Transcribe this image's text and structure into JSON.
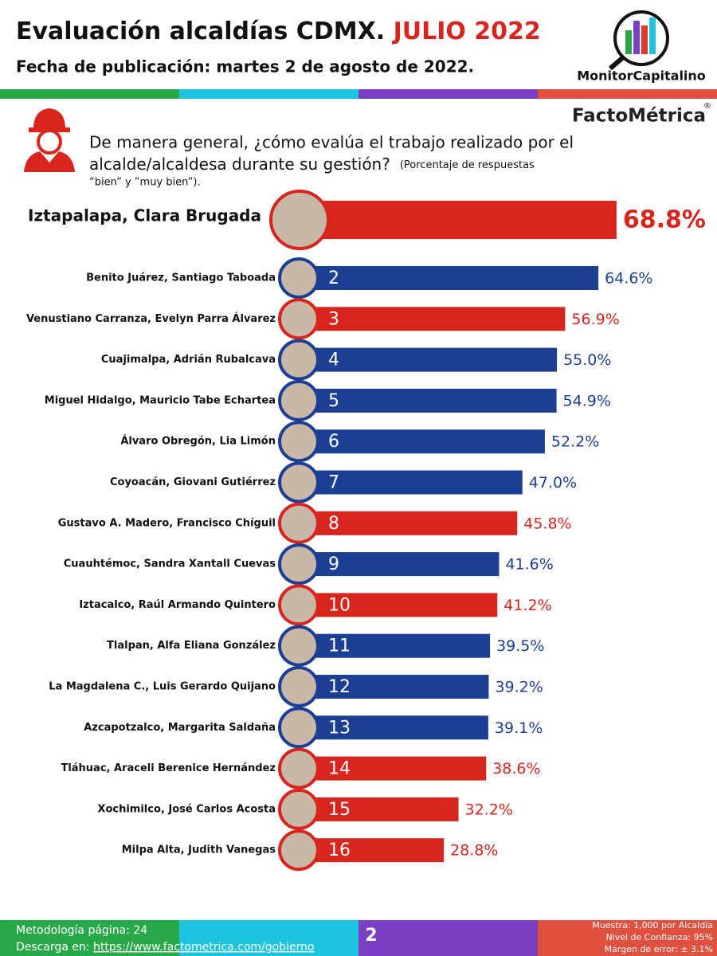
{
  "header": {
    "title": "Evaluación alcaldías CDMX.",
    "title_highlight": "JULIO 2022",
    "subtitle": "Fecha de publicación: martes 2 de agosto de 2022.",
    "brand": "MonitorCapitalino",
    "pollster": "FactoMétrica",
    "registered": "®"
  },
  "question": {
    "line1": "De manera general, ¿cómo evalúa el trabajo realizado por el",
    "line2": "alcalde/alcaldesa durante su gestión?",
    "note1": "(Porcentaje de respuestas",
    "note2": "“bien” y ”muy bien”)."
  },
  "chart_data": {
    "type": "bar",
    "categories": [
      "Iztapalapa, Clara Brugada",
      "Benito Juárez, Santiago Taboada",
      "Venustiano Carranza, Evelyn Parra Álvarez",
      "Cuajimalpa, Adrián Rubalcava",
      "Miguel Hidalgo, Mauricio Tabe Echartea",
      "Álvaro Obregón, Lia Limón",
      "Coyoacán, Giovani Gutiérrez",
      "Gustavo A. Madero, Francisco Chíguil",
      "Cuauhtémoc, Sandra Xantall Cuevas",
      "Iztacalco, Raúl Armando Quintero",
      "Tlalpan, Alfa Eliana González",
      "La Magdalena C., Luis Gerardo Quijano",
      "Azcapotzalco, Margarita Saldaña",
      "Tláhuac, Araceli Berenice Hernández",
      "Xochimilco, José Carlos Acosta",
      "Milpa Alta, Judith Vanegas"
    ],
    "ranks": [
      null,
      2,
      3,
      4,
      5,
      6,
      7,
      8,
      9,
      10,
      11,
      12,
      13,
      14,
      15,
      16
    ],
    "values": [
      68.8,
      64.6,
      56.9,
      55.0,
      54.9,
      52.2,
      47.0,
      45.8,
      41.6,
      41.2,
      39.5,
      39.2,
      39.1,
      38.6,
      32.2,
      28.8
    ],
    "value_labels": [
      "68.8%",
      "64.6%",
      "56.9%",
      "55.0%",
      "54.9%",
      "52.2%",
      "47.0%",
      "45.8%",
      "41.6%",
      "41.2%",
      "39.5%",
      "39.2%",
      "39.1%",
      "38.6%",
      "32.2%",
      "28.8%"
    ],
    "colors": [
      "#d8261f",
      "#1d3f93",
      "#d8261f",
      "#1d3f93",
      "#1d3f93",
      "#1d3f93",
      "#1d3f93",
      "#d8261f",
      "#1d3f93",
      "#d8261f",
      "#1d3f93",
      "#1d3f93",
      "#1d3f93",
      "#d8261f",
      "#d8261f",
      "#d8261f"
    ]
  },
  "footer": {
    "methodology": "Metodología página: 24",
    "download": "Descarga en:",
    "url": "https://www.factometrica.com/gobierno",
    "page": "2",
    "sample": "Muestra: 1,000 por Alcaldía",
    "confidence": "Nivel de Confianza: 95%",
    "margin": "Margen de error: ± 3.1%"
  }
}
